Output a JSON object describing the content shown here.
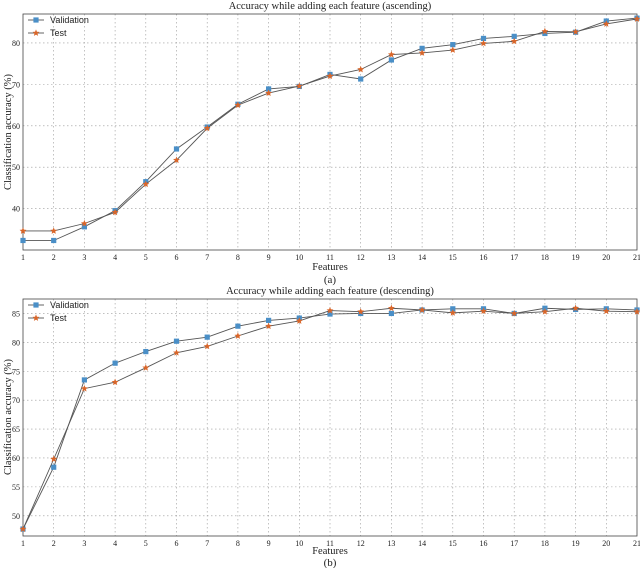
{
  "chart_data": [
    {
      "type": "line",
      "title": "Accuracy while adding each feature (ascending)",
      "xlabel": "Features",
      "ylabel": "Classification accuracy (%)",
      "caption": "(a)",
      "x": [
        1,
        2,
        3,
        4,
        5,
        6,
        7,
        8,
        9,
        10,
        11,
        12,
        13,
        14,
        15,
        16,
        17,
        18,
        19,
        20,
        21
      ],
      "xlim": [
        1,
        21
      ],
      "ylim": [
        30,
        87
      ],
      "yticks": [
        40,
        50,
        60,
        70,
        80
      ],
      "grid": true,
      "legend": "top-left",
      "series": [
        {
          "name": "Validation",
          "color": "#4a8fc7",
          "marker": "square",
          "values": [
            32.3,
            32.3,
            35.6,
            39.5,
            46.5,
            54.4,
            59.7,
            65.2,
            68.9,
            69.5,
            72.4,
            71.3,
            75.9,
            78.7,
            79.6,
            81.1,
            81.6,
            82.3,
            82.6,
            85.3,
            86.0
          ]
        },
        {
          "name": "Test",
          "color": "#d9662a",
          "marker": "star",
          "values": [
            34.6,
            34.6,
            36.4,
            39.1,
            45.9,
            51.7,
            59.4,
            65.0,
            67.9,
            69.6,
            72.0,
            73.6,
            77.2,
            77.6,
            78.3,
            79.9,
            80.4,
            82.8,
            82.7,
            84.6,
            85.8
          ]
        }
      ]
    },
    {
      "type": "line",
      "title": "Accuracy while adding each feature (descending)",
      "xlabel": "Features",
      "ylabel": "Classification accuracy (%)",
      "caption": "(b)",
      "x": [
        1,
        2,
        3,
        4,
        5,
        6,
        7,
        8,
        9,
        10,
        11,
        12,
        13,
        14,
        15,
        16,
        17,
        18,
        19,
        20,
        21
      ],
      "xlim": [
        1,
        21
      ],
      "ylim": [
        46.5,
        87.5
      ],
      "yticks": [
        50,
        55,
        60,
        65,
        70,
        75,
        80,
        85
      ],
      "grid": true,
      "legend": "top-left",
      "series": [
        {
          "name": "Validation",
          "color": "#4a8fc7",
          "marker": "square",
          "values": [
            47.7,
            58.4,
            73.5,
            76.4,
            78.4,
            80.2,
            80.9,
            82.8,
            83.8,
            84.2,
            84.9,
            85.0,
            85.0,
            85.6,
            85.8,
            85.8,
            85.0,
            85.9,
            85.7,
            85.8,
            85.6
          ]
        },
        {
          "name": "Test",
          "color": "#d9662a",
          "marker": "star",
          "values": [
            47.7,
            59.8,
            72.0,
            73.1,
            75.6,
            78.2,
            79.3,
            81.1,
            82.8,
            83.7,
            85.5,
            85.3,
            85.9,
            85.6,
            85.1,
            85.4,
            85.0,
            85.3,
            85.9,
            85.4,
            85.3
          ]
        }
      ]
    }
  ]
}
